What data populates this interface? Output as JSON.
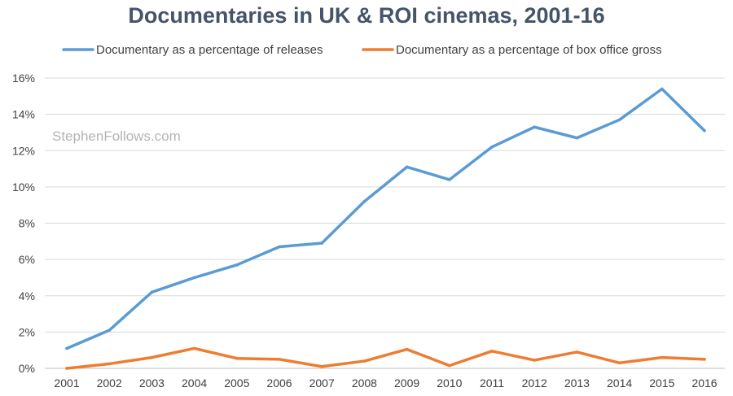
{
  "chart_data": {
    "type": "line",
    "title": "Documentaries in UK & ROI cinemas, 2001-16",
    "watermark": "StephenFollows.com",
    "categories": [
      "2001",
      "2002",
      "2003",
      "2004",
      "2005",
      "2006",
      "2007",
      "2008",
      "2009",
      "2010",
      "2011",
      "2012",
      "2013",
      "2014",
      "2015",
      "2016"
    ],
    "y_ticks": [
      "0%",
      "2%",
      "4%",
      "6%",
      "8%",
      "10%",
      "12%",
      "14%",
      "16%"
    ],
    "y_tick_values": [
      0,
      2,
      4,
      6,
      8,
      10,
      12,
      14,
      16
    ],
    "ylim": [
      0,
      16
    ],
    "xlabel": "",
    "ylabel": "",
    "grid": true,
    "legend_position": "top",
    "series": [
      {
        "name": "Documentary as a percentage of releases",
        "color": "#5b9bd5",
        "values": [
          1.1,
          2.1,
          4.2,
          5.0,
          5.7,
          6.7,
          6.9,
          9.2,
          11.1,
          10.4,
          12.2,
          13.3,
          12.7,
          13.7,
          15.4,
          13.1
        ]
      },
      {
        "name": "Documentary as a percentage of box office gross",
        "color": "#ed7d31",
        "values": [
          0.0,
          0.25,
          0.6,
          1.1,
          0.55,
          0.5,
          0.1,
          0.4,
          1.05,
          0.15,
          0.95,
          0.45,
          0.9,
          0.3,
          0.6,
          0.5
        ]
      }
    ]
  }
}
